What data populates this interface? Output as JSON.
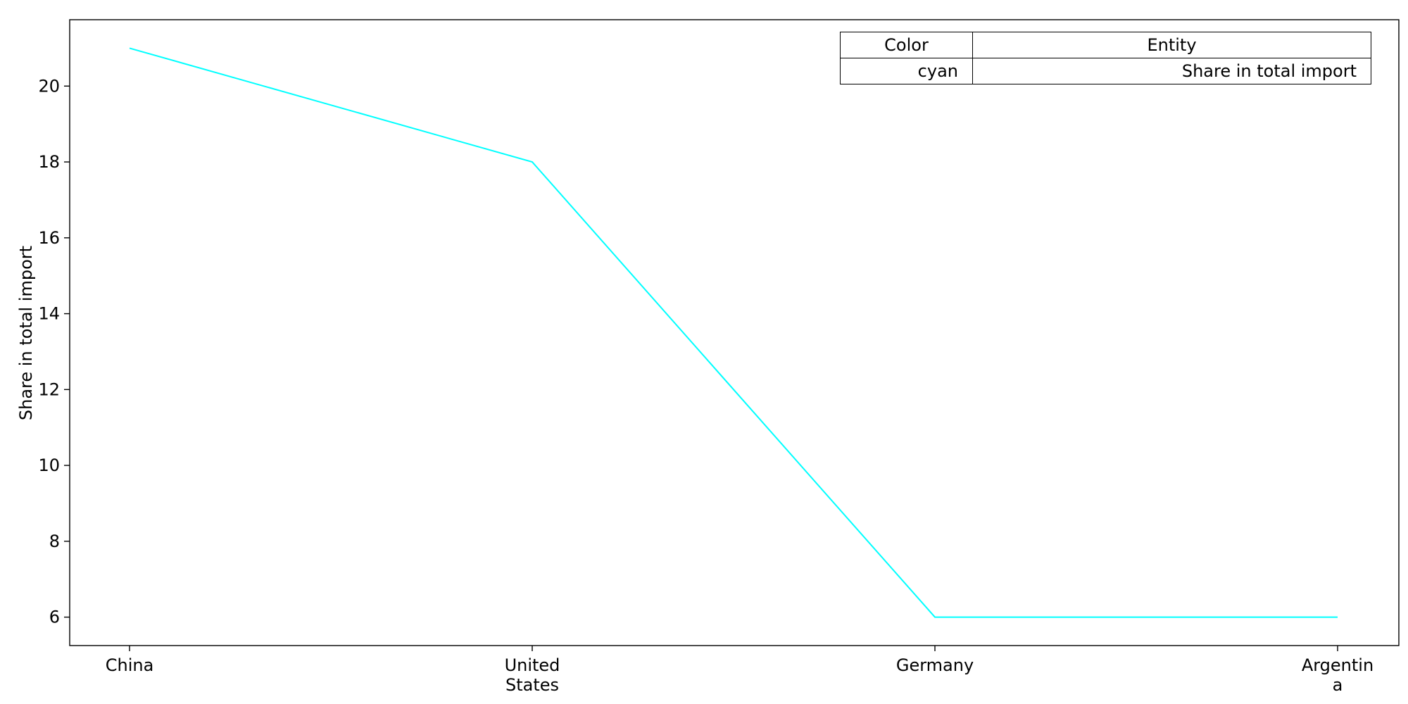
{
  "chart_data": {
    "type": "line",
    "categories": [
      "China",
      "United\nStates",
      "Germany",
      "Argentin\na"
    ],
    "series": [
      {
        "name": "Share in total import",
        "values": [
          21,
          18,
          6,
          6
        ],
        "color": "#00ffff"
      }
    ],
    "xlabel": "",
    "ylabel": "Share in total import",
    "ylim": [
      5.25,
      21.75
    ],
    "yticks": [
      6,
      8,
      10,
      12,
      14,
      16,
      18,
      20
    ],
    "grid": false,
    "legend": {
      "placement": "top-right",
      "headers": [
        "Color",
        "Entity"
      ],
      "rows": [
        {
          "color": "cyan",
          "entity": "Share in total import"
        }
      ]
    }
  }
}
